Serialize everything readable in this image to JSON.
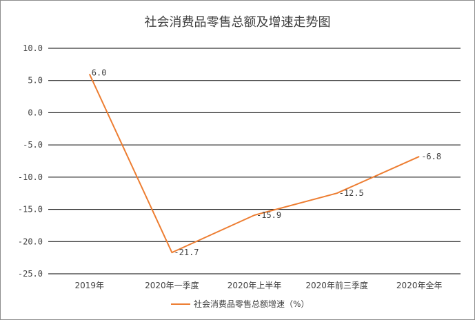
{
  "chart_data": {
    "type": "line",
    "title": "社会消费品零售总额及增速走势图",
    "categories": [
      "2019年",
      "2020年一季度",
      "2020年上半年",
      "2020年前三季度",
      "2020年全年"
    ],
    "series": [
      {
        "name": "社会消费品零售总额增速（%）",
        "values": [
          6.0,
          -21.7,
          -15.9,
          -12.5,
          -6.8
        ],
        "data_labels": [
          "6.0",
          "-21.7",
          "-15.9",
          "-12.5",
          "-6.8"
        ],
        "color": "#ed7d31"
      }
    ],
    "ylim": [
      -25.0,
      10.0
    ],
    "yticks": [
      "10.0",
      "5.0",
      "0.0",
      "-5.0",
      "-10.0",
      "-15.0",
      "-20.0",
      "-25.0"
    ],
    "ytick_values": [
      10,
      5,
      0,
      -5,
      -10,
      -15,
      -20,
      -25
    ],
    "grid": true,
    "legend": "bottom",
    "xlabel": "",
    "ylabel": ""
  }
}
